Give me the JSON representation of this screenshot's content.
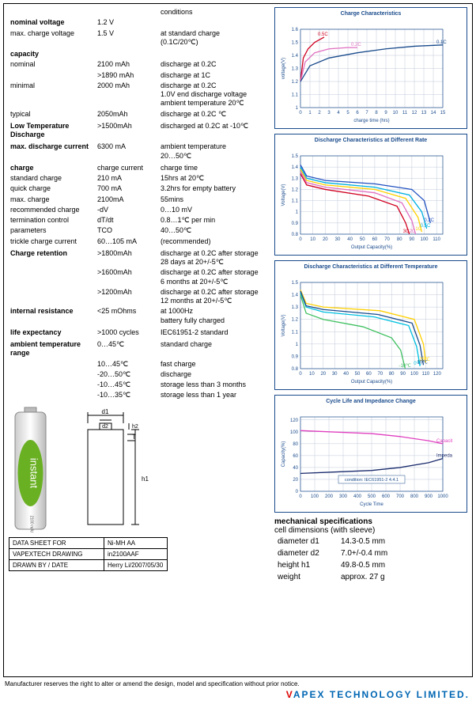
{
  "specs": [
    {
      "label": "",
      "value": "",
      "cond": "conditions",
      "bold": false
    },
    {
      "label": "nominal voltage",
      "value": "1.2 V",
      "cond": "",
      "bold": true
    },
    {
      "label": "max. charge voltage",
      "value": "1.5 V",
      "cond": "at standard charge\n(0.1C/20℃)",
      "bold": false
    },
    {
      "label": "",
      "value": "",
      "cond": "",
      "bold": false
    },
    {
      "label": "capacity",
      "value": "",
      "cond": "",
      "bold": true
    },
    {
      "label": "nominal",
      "value": "2100 mAh",
      "cond": "discharge at 0.2C",
      "bold": false
    },
    {
      "label": "",
      "value": ">1890 mAh",
      "cond": "discharge at 1C",
      "bold": false
    },
    {
      "label": "minimal",
      "value": "2000 mAh",
      "cond": "discharge at 0.2C\n1.0V end discharge voltage\nambient temperature 20℃",
      "bold": false
    },
    {
      "label": "typical",
      "value": "2050mAh",
      "cond": "discharge at 0.2C ℃",
      "bold": false
    },
    {
      "label": "",
      "value": "",
      "cond": "",
      "bold": false
    },
    {
      "label": "Low Temperature Discharge",
      "value": ">1500mAh",
      "cond": "discharged at 0.2C at -10℃",
      "bold": true
    },
    {
      "label": "",
      "value": "",
      "cond": "",
      "bold": false
    },
    {
      "label": "max. discharge current",
      "value": "6300 mA",
      "cond": "ambient temperature\n20…50℃",
      "bold": true
    },
    {
      "label": "",
      "value": "",
      "cond": "",
      "bold": false
    },
    {
      "label": "charge",
      "value": "charge current",
      "cond": "charge time",
      "bold": true
    },
    {
      "label": "standard charge",
      "value": "210 mA",
      "cond": "15hrs at  20℃",
      "bold": false
    },
    {
      "label": "quick charge",
      "value": "700 mA",
      "cond": "3.2hrs for empty battery",
      "bold": false
    },
    {
      "label": "max. charge",
      "value": "2100mA",
      "cond": "55mins",
      "bold": false
    },
    {
      "label": "recommended charge",
      "value": "-dV",
      "cond": "0…10 mV",
      "bold": false
    },
    {
      "label": "termination control",
      "value": "dT/dt",
      "cond": "0.8…1℃ per min",
      "bold": false
    },
    {
      "label": "parameters",
      "value": "TCO",
      "cond": "40…50℃",
      "bold": false
    },
    {
      "label": "trickle charge current",
      "value": "60…105 mA",
      "cond": "(recommended)",
      "bold": false
    },
    {
      "label": "",
      "value": "",
      "cond": "",
      "bold": false
    },
    {
      "label": "Charge retention",
      "value": ">1800mAh",
      "cond": "discharge at 0.2C after storage\n28 days at 20+/-5℃",
      "bold": true
    },
    {
      "label": "",
      "value": ">1600mAh",
      "cond": "discharge at 0.2C after storage\n6 months at 20+/-5℃",
      "bold": false
    },
    {
      "label": "",
      "value": ">1200mAh",
      "cond": "discharge at 0.2C after storage\n12 months at 20+/-5℃",
      "bold": false
    },
    {
      "label": "internal resistance",
      "value": "<25 mOhms",
      "cond": "at 1000Hz\nbattery fully charged",
      "bold": true
    },
    {
      "label": "",
      "value": "",
      "cond": "",
      "bold": false
    },
    {
      "label": "life expectancy",
      "value": ">1000 cycles",
      "cond": "IEC61951-2 standard",
      "bold": true
    },
    {
      "label": "",
      "value": "",
      "cond": "",
      "bold": false
    },
    {
      "label": "ambient temperature range",
      "value": "0…45℃",
      "cond": "standard charge",
      "bold": true
    },
    {
      "label": "",
      "value": "10…45℃",
      "cond": "fast charge",
      "bold": false
    },
    {
      "label": "",
      "value": "-20…50℃",
      "cond": "discharge",
      "bold": false
    },
    {
      "label": "",
      "value": "-10…45℃",
      "cond": "storage less than 3 months",
      "bold": false
    },
    {
      "label": "",
      "value": "-10…35℃",
      "cond": "storage less than 1 year",
      "bold": false
    }
  ],
  "charts": {
    "chart1": {
      "title": "Charge Characteristics",
      "xlabel": "charge time (hrs)",
      "ylabel": "voltage(V)",
      "xlim": [
        0,
        15
      ],
      "ylim": [
        1.0,
        1.6
      ],
      "xticks": [
        0,
        1,
        2,
        3,
        4,
        5,
        6,
        7,
        8,
        9,
        10,
        11,
        12,
        13,
        14,
        15
      ],
      "yticks": [
        1.0,
        1.1,
        1.2,
        1.3,
        1.4,
        1.5,
        1.6
      ],
      "grid_color": "#c0c8d8",
      "series": [
        {
          "label": "0.5C",
          "color": "#d00020",
          "points": [
            [
              0,
              1.2
            ],
            [
              0.3,
              1.38
            ],
            [
              0.8,
              1.45
            ],
            [
              1.5,
              1.5
            ],
            [
              2,
              1.52
            ],
            [
              2.5,
              1.54
            ]
          ]
        },
        {
          "label": "0.2C",
          "color": "#e070c0",
          "points": [
            [
              0,
              1.2
            ],
            [
              0.5,
              1.35
            ],
            [
              1.5,
              1.42
            ],
            [
              3,
              1.45
            ],
            [
              5,
              1.46
            ],
            [
              6,
              1.46
            ]
          ]
        },
        {
          "label": "0.1C",
          "color": "#1a4b8c",
          "points": [
            [
              0,
              1.2
            ],
            [
              1,
              1.32
            ],
            [
              3,
              1.38
            ],
            [
              6,
              1.42
            ],
            [
              9,
              1.45
            ],
            [
              12,
              1.47
            ],
            [
              15,
              1.48
            ]
          ]
        }
      ]
    },
    "chart2": {
      "title": "Discharge Characteristics at Different Rate",
      "xlabel": "Output Capacity(%)",
      "ylabel": "Voltage(V)",
      "xlim": [
        0,
        115
      ],
      "ylim": [
        0.8,
        1.5
      ],
      "xticks": [
        0,
        10,
        20,
        30,
        40,
        50,
        60,
        70,
        80,
        90,
        100,
        110
      ],
      "yticks": [
        0.8,
        0.9,
        1.0,
        1.1,
        1.2,
        1.3,
        1.4,
        1.5
      ],
      "grid_color": "#c0c8d8",
      "series": [
        {
          "label": "0.2C",
          "color": "#2050c0",
          "points": [
            [
              0,
              1.42
            ],
            [
              5,
              1.32
            ],
            [
              20,
              1.28
            ],
            [
              60,
              1.25
            ],
            [
              90,
              1.2
            ],
            [
              100,
              1.1
            ],
            [
              105,
              0.9
            ]
          ]
        },
        {
          "label": "0.5C",
          "color": "#00b0e0",
          "points": [
            [
              0,
              1.4
            ],
            [
              5,
              1.3
            ],
            [
              20,
              1.26
            ],
            [
              60,
              1.22
            ],
            [
              88,
              1.15
            ],
            [
              98,
              1.0
            ],
            [
              102,
              0.85
            ]
          ]
        },
        {
          "label": "1C",
          "color": "#ffd000",
          "points": [
            [
              0,
              1.38
            ],
            [
              5,
              1.28
            ],
            [
              20,
              1.24
            ],
            [
              60,
              1.2
            ],
            [
              85,
              1.12
            ],
            [
              95,
              0.95
            ],
            [
              98,
              0.82
            ]
          ]
        },
        {
          "label": "2C",
          "color": "#e070c0",
          "points": [
            [
              0,
              1.36
            ],
            [
              5,
              1.26
            ],
            [
              20,
              1.22
            ],
            [
              60,
              1.17
            ],
            [
              82,
              1.08
            ],
            [
              90,
              0.92
            ],
            [
              93,
              0.8
            ]
          ]
        },
        {
          "label": "3C",
          "color": "#d00020",
          "points": [
            [
              0,
              1.34
            ],
            [
              5,
              1.24
            ],
            [
              20,
              1.2
            ],
            [
              55,
              1.14
            ],
            [
              78,
              1.05
            ],
            [
              85,
              0.9
            ],
            [
              88,
              0.8
            ]
          ]
        }
      ]
    },
    "chart3": {
      "title": "Discharge Characteristics at Different Temperature",
      "xlabel": "Output Capacity(%)",
      "ylabel": "Voltage(V)",
      "xlim": [
        0,
        125
      ],
      "ylim": [
        0.8,
        1.5
      ],
      "xticks": [
        0,
        10,
        20,
        30,
        40,
        50,
        60,
        70,
        80,
        90,
        100,
        110,
        120
      ],
      "yticks": [
        0.8,
        0.9,
        1.0,
        1.1,
        1.2,
        1.3,
        1.4,
        1.5
      ],
      "grid_color": "#c0c8d8",
      "series": [
        {
          "label": "25℃",
          "color": "#ffd000",
          "points": [
            [
              0,
              1.44
            ],
            [
              5,
              1.33
            ],
            [
              20,
              1.3
            ],
            [
              70,
              1.27
            ],
            [
              100,
              1.2
            ],
            [
              108,
              1.0
            ],
            [
              110,
              0.85
            ]
          ]
        },
        {
          "label": "0℃",
          "color": "#00c0e0",
          "points": [
            [
              0,
              1.42
            ],
            [
              5,
              1.3
            ],
            [
              20,
              1.26
            ],
            [
              65,
              1.22
            ],
            [
              95,
              1.15
            ],
            [
              102,
              0.98
            ],
            [
              105,
              0.82
            ]
          ]
        },
        {
          "label": "-10℃",
          "color": "#40c060",
          "points": [
            [
              0,
              1.4
            ],
            [
              5,
              1.25
            ],
            [
              20,
              1.2
            ],
            [
              55,
              1.14
            ],
            [
              80,
              1.05
            ],
            [
              88,
              0.95
            ],
            [
              92,
              0.8
            ]
          ]
        },
        {
          "label": "10℃",
          "color": "#1a4b8c",
          "points": [
            [
              0,
              1.43
            ],
            [
              5,
              1.31
            ],
            [
              20,
              1.28
            ],
            [
              68,
              1.24
            ],
            [
              98,
              1.17
            ],
            [
              105,
              0.99
            ],
            [
              108,
              0.83
            ]
          ]
        }
      ]
    },
    "chart4": {
      "title": "Cycle Life and Impedance Change",
      "xlabel": "Cycle Time",
      "ylabel": "Capacity(%)",
      "ylabel2": "mΩ",
      "xlim": [
        0,
        1000
      ],
      "ylim": [
        0,
        125
      ],
      "xticks": [
        0,
        100,
        200,
        300,
        400,
        500,
        600,
        700,
        800,
        900,
        1000
      ],
      "yticks": [
        0,
        20,
        40,
        60,
        80,
        100,
        120
      ],
      "grid_color": "#c0c8d8",
      "annotation": "condition: IEC61951-2 4.4.1",
      "series": [
        {
          "label": "Capacity",
          "color": "#e040c0",
          "points": [
            [
              0,
              102
            ],
            [
              200,
              100
            ],
            [
              500,
              97
            ],
            [
              700,
              92
            ],
            [
              900,
              85
            ],
            [
              1000,
              80
            ]
          ]
        },
        {
          "label": "Impedance",
          "color": "#1a2b6c",
          "points": [
            [
              0,
              30
            ],
            [
              200,
              32
            ],
            [
              500,
              35
            ],
            [
              700,
              40
            ],
            [
              900,
              48
            ],
            [
              1000,
              55
            ]
          ]
        }
      ]
    }
  },
  "mech": {
    "title": "mechanical specifications",
    "sub": "cell dimensions (with sleeve)",
    "rows": [
      {
        "k": "diameter d1",
        "v": "14.3-0.5 mm"
      },
      {
        "k": "diameter d2",
        "v": "7.0+/-0.4 mm"
      },
      {
        "k": "height h1",
        "v": "49.8-0.5 mm"
      },
      {
        "k": "weight",
        "v": "approx. 27 g"
      }
    ]
  },
  "info": [
    {
      "k": "DATA SHEET FOR",
      "v": "Ni-MH AA"
    },
    {
      "k": "VAPEXTECH DRAWING",
      "v": "in2100AAF"
    },
    {
      "k": "DRAWN BY / DATE",
      "v": "Herry Li/2007/05/30"
    }
  ],
  "drawing_labels": {
    "d1": "d1",
    "d2": "d2",
    "h1": "h1",
    "h2": "h2",
    "T": "T"
  },
  "footer": "Manufacturer reserves the right to alter or amend the design, model and specification without prior notice.",
  "logo": {
    "v": "V",
    "rest": "APEX TECHNOLOGY LIMITED."
  },
  "battery_label": "instant",
  "battery_sub": "2100 mAh"
}
